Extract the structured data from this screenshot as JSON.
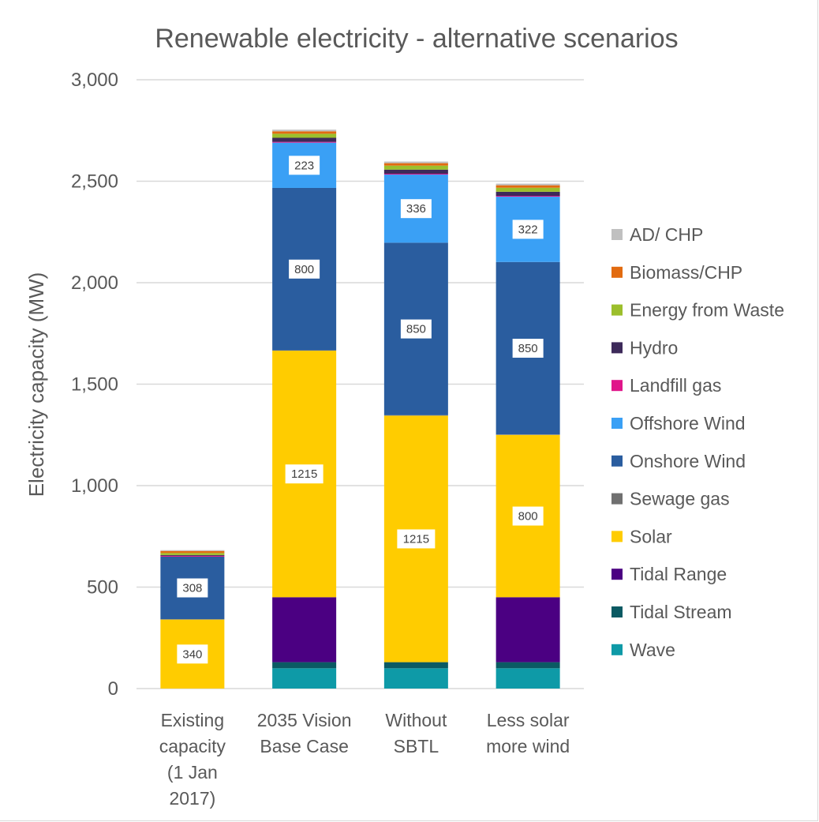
{
  "chart_data": {
    "type": "bar",
    "stacked": true,
    "title": "Renewable electricity - alternative scenarios",
    "ylabel": "Electricity capacity (MW)",
    "xlabel": "",
    "ylim": [
      0,
      3000
    ],
    "yticks": [
      0,
      500,
      1000,
      1500,
      2000,
      2500,
      3000
    ],
    "ytick_labels": [
      "0",
      "500",
      "1,000",
      "1,500",
      "2,000",
      "2,500",
      "3,000"
    ],
    "grid": true,
    "legend_position": "right",
    "categories": [
      [
        "Existing",
        "capacity",
        "(1 Jan",
        "2017)"
      ],
      [
        "2035 Vision",
        "Base Case"
      ],
      [
        "Without",
        "SBTL"
      ],
      [
        "Less solar",
        "more wind"
      ]
    ],
    "series": [
      {
        "name": "Wave",
        "color": "#0e9aa7",
        "values": [
          0,
          100,
          100,
          100
        ],
        "labels": [
          null,
          null,
          null,
          null
        ]
      },
      {
        "name": "Tidal Stream",
        "color": "#0b5a63",
        "values": [
          0,
          30,
          30,
          30
        ],
        "labels": [
          null,
          null,
          null,
          null
        ]
      },
      {
        "name": "Tidal Range",
        "color": "#4b0082",
        "values": [
          0,
          320,
          0,
          320
        ],
        "labels": [
          null,
          null,
          null,
          null
        ]
      },
      {
        "name": "Solar",
        "color": "#ffcc00",
        "values": [
          340,
          1215,
          1215,
          800
        ],
        "labels": [
          "340",
          "1215",
          "1215",
          "800"
        ]
      },
      {
        "name": "Sewage gas",
        "color": "#707070",
        "values": [
          2,
          2,
          2,
          2
        ],
        "labels": [
          null,
          null,
          null,
          null
        ]
      },
      {
        "name": "Onshore Wind",
        "color": "#2a5d9f",
        "values": [
          308,
          800,
          850,
          850
        ],
        "labels": [
          "308",
          "800",
          "850",
          "850"
        ]
      },
      {
        "name": "Offshore Wind",
        "color": "#3aa0f5",
        "values": [
          0,
          223,
          336,
          322
        ],
        "labels": [
          null,
          "223",
          "336",
          "322"
        ]
      },
      {
        "name": "Landfill gas",
        "color": "#e0168a",
        "values": [
          4,
          4,
          4,
          4
        ],
        "labels": [
          null,
          null,
          null,
          null
        ]
      },
      {
        "name": "Hydro",
        "color": "#3d2a5a",
        "values": [
          4,
          20,
          20,
          20
        ],
        "labels": [
          null,
          null,
          null,
          null
        ]
      },
      {
        "name": "Energy from Waste",
        "color": "#9cbf2c",
        "values": [
          10,
          20,
          20,
          20
        ],
        "labels": [
          null,
          null,
          null,
          null
        ]
      },
      {
        "name": "Biomass/CHP",
        "color": "#e26b10",
        "values": [
          10,
          12,
          12,
          12
        ],
        "labels": [
          null,
          null,
          null,
          null
        ]
      },
      {
        "name": "AD/ CHP",
        "color": "#c0c0c0",
        "values": [
          4,
          8,
          8,
          8
        ],
        "labels": [
          null,
          null,
          null,
          null
        ]
      }
    ],
    "legend_order": [
      "AD/ CHP",
      "Biomass/CHP",
      "Energy from Waste",
      "Hydro",
      "Landfill gas",
      "Offshore Wind",
      "Onshore Wind",
      "Sewage gas",
      "Solar",
      "Tidal Range",
      "Tidal Stream",
      "Wave"
    ]
  }
}
